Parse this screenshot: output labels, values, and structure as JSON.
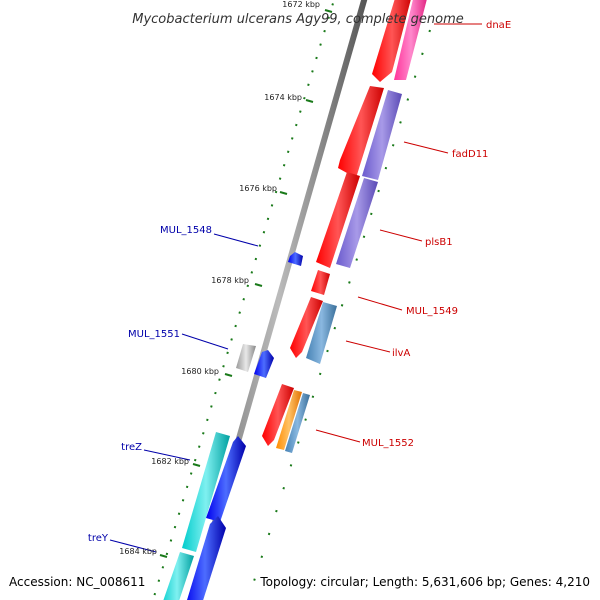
{
  "title": "Mycobacterium ulcerans Agy99, complete genome",
  "footer": {
    "accession": "Accession: NC_008611",
    "topology": "Topology: circular; Length: 5,631,606 bp; Genes: 4,210"
  },
  "ticks": [
    {
      "label": "1672 kbp"
    },
    {
      "label": "1674 kbp"
    },
    {
      "label": "1676 kbp"
    },
    {
      "label": "1678 kbp"
    },
    {
      "label": "1680 kbp"
    },
    {
      "label": "1682 kbp"
    },
    {
      "label": "1684 kbp"
    }
  ],
  "gene_labels": [
    {
      "text": "dnaE",
      "strand": "forward"
    },
    {
      "text": "fadD11",
      "strand": "forward"
    },
    {
      "text": "plsB1",
      "strand": "forward"
    },
    {
      "text": "MUL_1549",
      "strand": "forward"
    },
    {
      "text": "ilvA",
      "strand": "forward"
    },
    {
      "text": "MUL_1552",
      "strand": "forward"
    },
    {
      "text": "MUL_1548",
      "strand": "reverse"
    },
    {
      "text": "MUL_1551",
      "strand": "reverse"
    },
    {
      "text": "treZ",
      "strand": "reverse"
    },
    {
      "text": "treY",
      "strand": "reverse"
    }
  ],
  "colors": {
    "cds": "#ff0000",
    "forward_feature": "#0033ff",
    "magenta": "#ff3399",
    "purple": "#7060cc",
    "steel_blue": "#4b86c0",
    "orange": "#ff9900",
    "cyan": "#00cccc",
    "grey": "#aaaaaa",
    "backbone": "#888888",
    "tick": "#1a7a1a",
    "label_red": "#cc0000",
    "label_blue": "#0000aa"
  }
}
